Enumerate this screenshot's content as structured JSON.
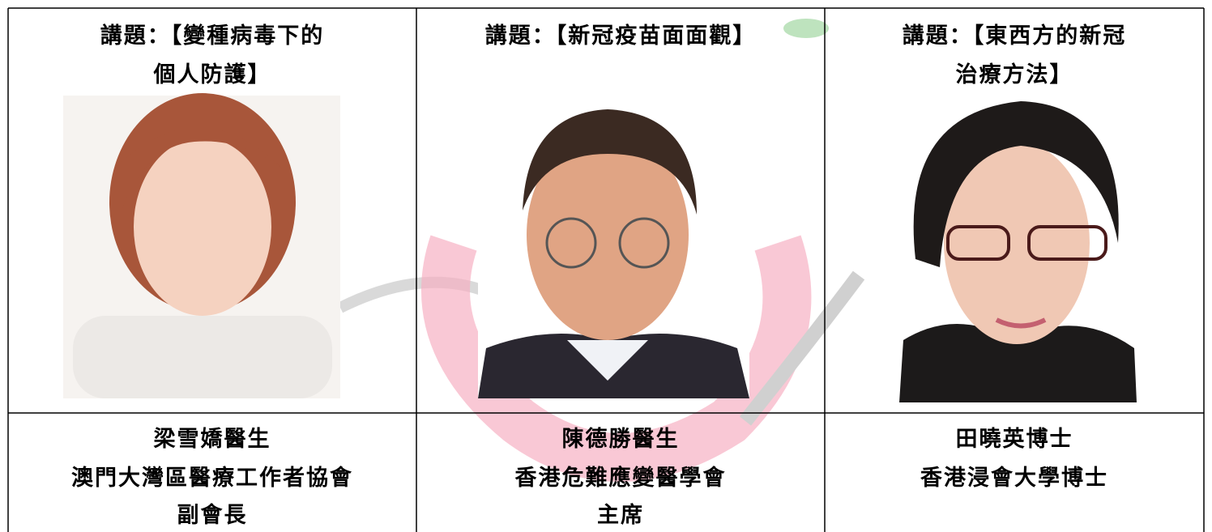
{
  "columns": [
    {
      "topic": [
        "講題：【變種病毒下的",
        "個人防護】"
      ],
      "details": [
        "梁雪嬌醫生",
        "澳門大灣區醫療工作者協會",
        "副會長"
      ]
    },
    {
      "topic": [
        "講題：【新冠疫苗面面觀】"
      ],
      "details": [
        "陳德勝醫生",
        "香港危難應變醫學會",
        "主席"
      ]
    },
    {
      "topic": [
        "講題：【東西方的新冠",
        "治療方法】"
      ],
      "details": [
        "田曉英博士",
        "香港浸會大學博士"
      ]
    }
  ]
}
